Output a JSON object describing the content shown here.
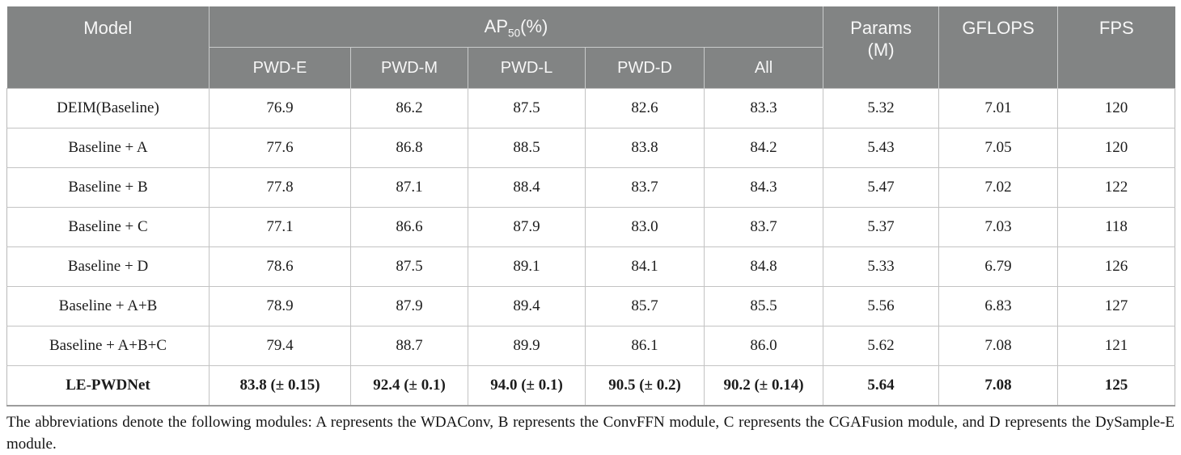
{
  "colors": {
    "header_bg": "#828484",
    "header_text": "#f7f7f7",
    "body_text": "#1c1c1c",
    "grid_line": "#c3c3c3"
  },
  "table": {
    "header": {
      "model": "Model",
      "ap50": {
        "base": "AP",
        "sub": "50",
        "suffix": "(%)"
      },
      "sub_columns": [
        "PWD-E",
        "PWD-M",
        "PWD-L",
        "PWD-D",
        "All"
      ],
      "params_line1": "Params",
      "params_line2": "(M)",
      "gflops": "GFLOPS",
      "fps": "FPS"
    },
    "rows": [
      {
        "model": "DEIM(Baseline)",
        "bold": false,
        "values": [
          "76.9",
          "86.2",
          "87.5",
          "82.6",
          "83.3",
          "5.32",
          "7.01",
          "120"
        ]
      },
      {
        "model": "Baseline + A",
        "bold": false,
        "values": [
          "77.6",
          "86.8",
          "88.5",
          "83.8",
          "84.2",
          "5.43",
          "7.05",
          "120"
        ]
      },
      {
        "model": "Baseline + B",
        "bold": false,
        "values": [
          "77.8",
          "87.1",
          "88.4",
          "83.7",
          "84.3",
          "5.47",
          "7.02",
          "122"
        ]
      },
      {
        "model": "Baseline + C",
        "bold": false,
        "values": [
          "77.1",
          "86.6",
          "87.9",
          "83.0",
          "83.7",
          "5.37",
          "7.03",
          "118"
        ]
      },
      {
        "model": "Baseline + D",
        "bold": false,
        "values": [
          "78.6",
          "87.5",
          "89.1",
          "84.1",
          "84.8",
          "5.33",
          "6.79",
          "126"
        ]
      },
      {
        "model": "Baseline + A+B",
        "bold": false,
        "values": [
          "78.9",
          "87.9",
          "89.4",
          "85.7",
          "85.5",
          "5.56",
          "6.83",
          "127"
        ]
      },
      {
        "model": "Baseline + A+B+C",
        "bold": false,
        "values": [
          "79.4",
          "88.7",
          "89.9",
          "86.1",
          "86.0",
          "5.62",
          "7.08",
          "121"
        ]
      },
      {
        "model": "LE-PWDNet",
        "bold": true,
        "values": [
          "83.8 (± 0.15)",
          "92.4 (± 0.1)",
          "94.0 (± 0.1)",
          "90.5 (± 0.2)",
          "90.2 (± 0.14)",
          "5.64",
          "7.08",
          "125"
        ]
      }
    ]
  },
  "footnote": "The abbreviations denote the following modules: A represents the WDAConv, B represents the ConvFFN module, C represents the CGAFusion module, and D represents the DySample-E module."
}
